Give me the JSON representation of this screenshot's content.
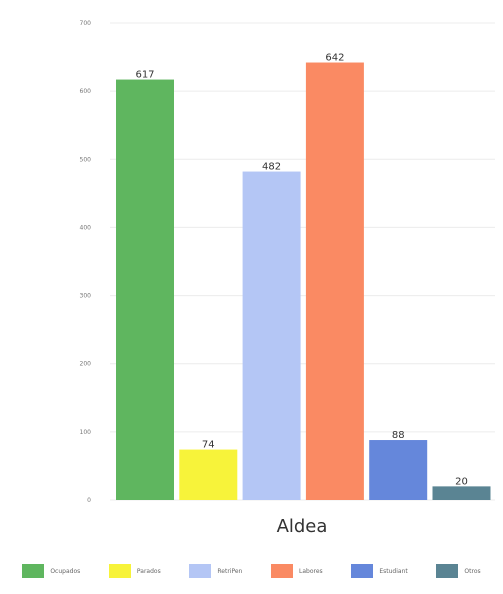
{
  "chart_data": {
    "type": "bar",
    "categories": [
      "Ocupados",
      "Parados",
      "RetriPen",
      "Labores",
      "Estudiant",
      "Otros"
    ],
    "values": [
      617,
      74,
      482,
      642,
      88,
      20
    ],
    "colors": [
      "#5fb65f",
      "#f7f33a",
      "#b4c6f5",
      "#fa8a63",
      "#6587db",
      "#5a8493"
    ],
    "xlabel": "Aldea",
    "ylabel": "",
    "title": "",
    "ylim": [
      0,
      700
    ],
    "yticks": [
      0,
      100,
      200,
      300,
      400,
      500,
      600,
      700
    ],
    "grid": true,
    "legend_position": "bottom"
  }
}
